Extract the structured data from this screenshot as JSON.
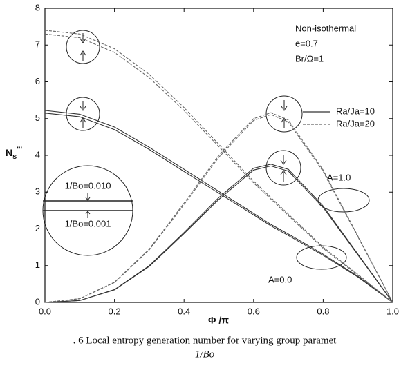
{
  "chart_data": {
    "type": "line",
    "x_label": "Φ /π",
    "y_label": {
      "main": "N",
      "sub": "s",
      "sup": "'''"
    },
    "annotations": {
      "condition": "Non-isothermal",
      "e": "e=0.7",
      "br": "Br/Ω=1",
      "a1": "A=1.0",
      "a0": "A=0.0",
      "bo_high": "1/Bo=0.010",
      "bo_low": "1/Bo=0.001"
    },
    "caption": [
      ". 6 Local entropy generation number for varying group paramet",
      "1/Bo"
    ],
    "x": [
      0,
      0.1,
      0.2,
      0.3,
      0.4,
      0.5,
      0.6,
      0.65,
      0.7,
      0.8,
      0.9,
      1.0
    ],
    "series": [
      {
        "name": "Ra/Ja=10",
        "color": "#333333",
        "dashed": false,
        "curves": [
          [
            5.22,
            5.12,
            4.77,
            4.22,
            3.62,
            3.02,
            2.42,
            2.12,
            1.86,
            1.31,
            0.71,
            0
          ],
          [
            5.15,
            5.05,
            4.7,
            4.16,
            3.56,
            2.97,
            2.38,
            2.08,
            1.82,
            1.28,
            0.69,
            0
          ],
          [
            0,
            0.05,
            0.35,
            1.0,
            1.9,
            2.85,
            3.65,
            3.76,
            3.62,
            2.62,
            1.31,
            0
          ],
          [
            0,
            0.05,
            0.34,
            0.98,
            1.87,
            2.8,
            3.6,
            3.71,
            3.57,
            2.58,
            1.29,
            0
          ]
        ]
      },
      {
        "name": "Ra/Ja=20",
        "color": "#666666",
        "dashed": true,
        "curves": [
          [
            7.4,
            7.3,
            6.9,
            6.2,
            5.3,
            4.3,
            3.3,
            2.85,
            2.4,
            1.5,
            0.76,
            0
          ],
          [
            7.3,
            7.2,
            6.8,
            6.11,
            5.22,
            4.24,
            3.25,
            2.81,
            2.36,
            1.47,
            0.74,
            0
          ],
          [
            0,
            0.1,
            0.55,
            1.45,
            2.7,
            4.0,
            5.0,
            5.16,
            4.96,
            3.6,
            1.8,
            0
          ],
          [
            0,
            0.1,
            0.54,
            1.43,
            2.66,
            3.95,
            4.95,
            5.11,
            4.91,
            3.56,
            1.78,
            0
          ]
        ]
      }
    ],
    "xlim": [
      0,
      1.0
    ],
    "xticks": [
      {
        "value": 0,
        "label": "0.0"
      },
      {
        "value": 0.2,
        "label": "0.2"
      },
      {
        "value": 0.4,
        "label": "0.4"
      },
      {
        "value": 0.6,
        "label": "0.6"
      },
      {
        "value": 0.8,
        "label": "0.8"
      },
      {
        "value": 1.0,
        "label": "1.0"
      }
    ],
    "ylim": [
      0,
      8
    ],
    "yticks": [
      0,
      1,
      2,
      3,
      4,
      5,
      6,
      7,
      8
    ],
    "grid": false
  }
}
